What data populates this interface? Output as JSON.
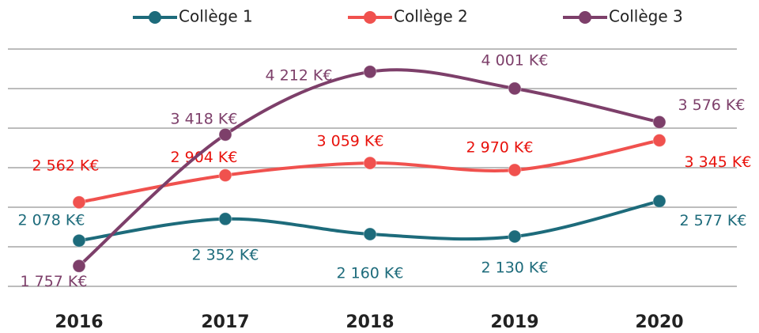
{
  "chart_data": {
    "type": "line",
    "categories": [
      "2016",
      "2017",
      "2018",
      "2019",
      "2020"
    ],
    "series": [
      {
        "name": "Collège 1",
        "color": "#1d6b7b",
        "values": [
          2078,
          2352,
          2160,
          2130,
          2577
        ],
        "value_labels": [
          "2 078 K€",
          "2 352 K€",
          "2 160 K€",
          "2 130 K€",
          "2 577 K€"
        ]
      },
      {
        "name": "Collège 2",
        "color": "#f0514e",
        "label_color": "#e8120c",
        "values": [
          2562,
          2904,
          3059,
          2970,
          3345
        ],
        "value_labels": [
          "2 562 K€",
          "2 904 K€",
          "3 059 K€",
          "2 970 K€",
          "3 345 K€"
        ]
      },
      {
        "name": "Collège 3",
        "color": "#7d3f6a",
        "values": [
          1757,
          3418,
          4212,
          4001,
          3576
        ],
        "value_labels": [
          "1 757 K€",
          "3 418 K€",
          "4 212 K€",
          "4 001 K€",
          "3 576 K€"
        ]
      }
    ],
    "ylim": [
      1500,
      4500
    ],
    "yticks": [
      1500,
      2000,
      2500,
      3000,
      3500,
      4000,
      4500
    ],
    "grid": true,
    "legend": "top"
  }
}
